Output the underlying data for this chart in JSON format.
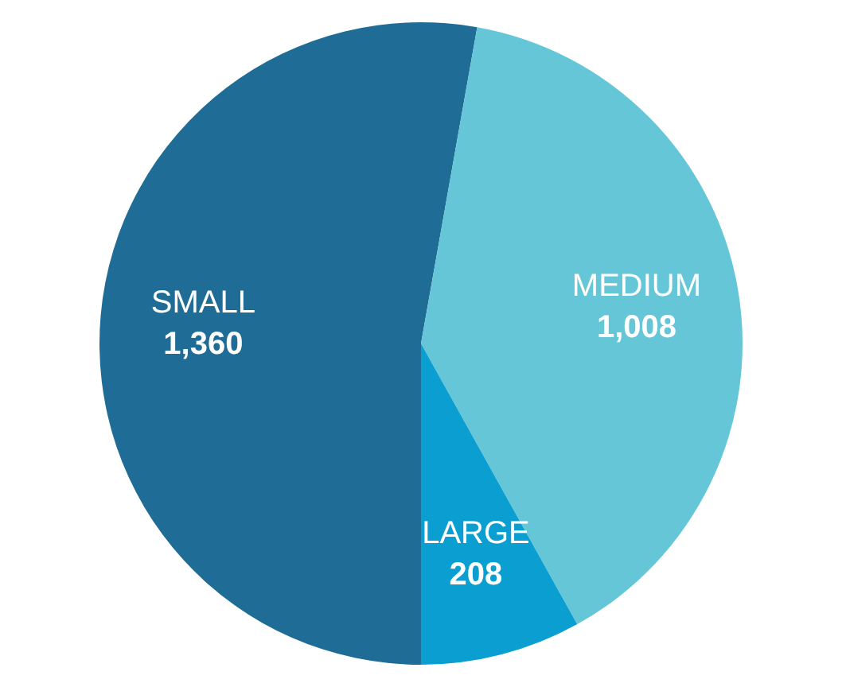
{
  "chart_data": {
    "type": "pie",
    "categories": [
      "SMALL",
      "MEDIUM",
      "LARGE"
    ],
    "values": [
      1360,
      1008,
      208
    ],
    "colors": [
      "#1f6d96",
      "#64c6d6",
      "#0a9fd0"
    ],
    "value_labels": [
      "1,360",
      "1,008",
      "208"
    ]
  }
}
